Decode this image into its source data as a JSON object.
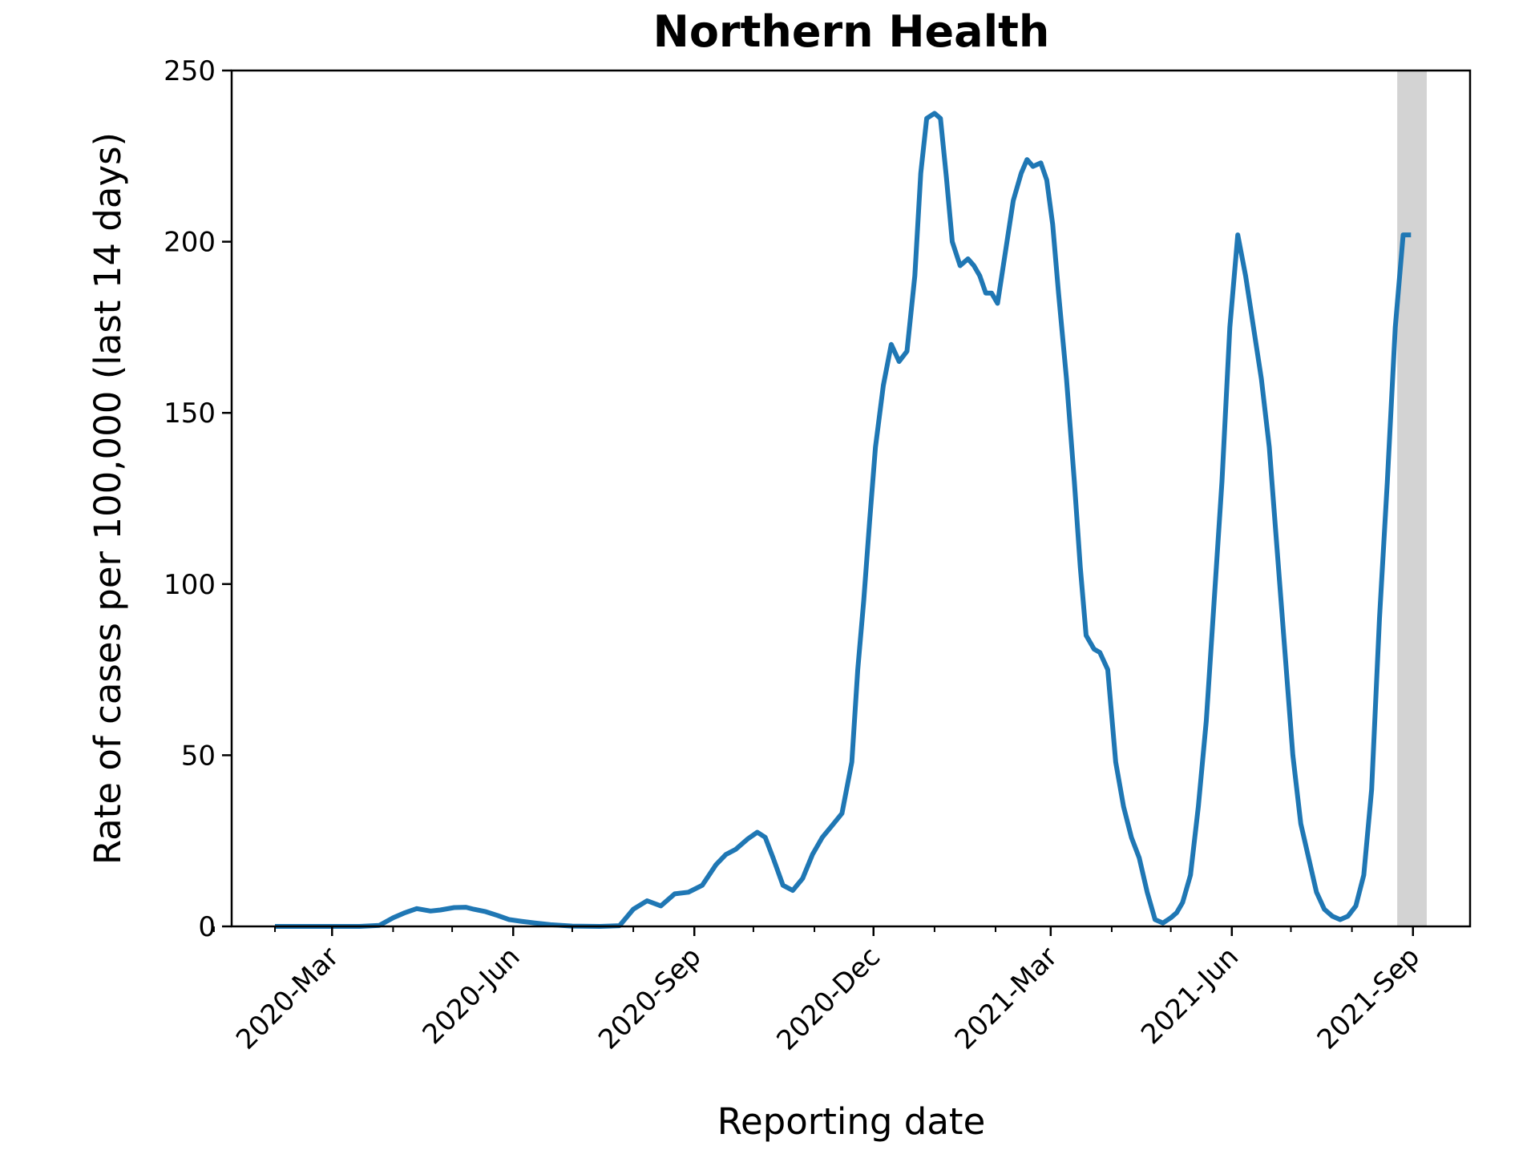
{
  "chart_data": {
    "type": "line",
    "title": "Northern Health",
    "xlabel": "Reporting date",
    "ylabel": "Rate of cases per 100,000 (last 14 days)",
    "ylim": [
      0,
      250
    ],
    "xlim": [
      "2020-01-10",
      "2021-09-30"
    ],
    "yticks": [
      0,
      50,
      100,
      150,
      200,
      250
    ],
    "yticklabels": [
      "0",
      "50",
      "100",
      "150",
      "200",
      "250"
    ],
    "xticks": [
      "2020-03-01",
      "2020-06-01",
      "2020-09-01",
      "2020-12-01",
      "2021-03-01",
      "2021-06-01",
      "2021-09-01"
    ],
    "xticklabels": [
      "2020-Mar",
      "2020-Jun",
      "2020-Sep",
      "2020-Dec",
      "2021-Mar",
      "2021-Jun",
      "2021-Sep"
    ],
    "minor_xticks": [
      "2020-01-01",
      "2020-02-01",
      "2020-04-01",
      "2020-05-01",
      "2020-07-01",
      "2020-08-01",
      "2020-10-01",
      "2020-11-01",
      "2021-01-01",
      "2021-02-01",
      "2021-04-01",
      "2021-05-01",
      "2021-07-01",
      "2021-08-01"
    ],
    "grid": false,
    "line_color": "#1f77b4",
    "shade_color": "#d3d3d3",
    "shaded_region": [
      "2021-08-24",
      "2021-09-08"
    ],
    "series": [
      {
        "x": [
          "2020-02-01",
          "2020-02-15",
          "2020-03-01",
          "2020-03-15",
          "2020-03-25",
          "2020-04-01",
          "2020-04-07",
          "2020-04-13",
          "2020-04-20",
          "2020-04-25",
          "2020-05-02",
          "2020-05-08",
          "2020-05-12",
          "2020-05-18",
          "2020-05-24",
          "2020-05-30",
          "2020-06-05",
          "2020-06-12",
          "2020-06-20",
          "2020-07-01",
          "2020-07-15",
          "2020-07-25",
          "2020-08-01",
          "2020-08-08",
          "2020-08-15",
          "2020-08-22",
          "2020-08-29",
          "2020-09-05",
          "2020-09-12",
          "2020-09-17",
          "2020-09-22",
          "2020-09-28",
          "2020-10-03",
          "2020-10-07",
          "2020-10-11",
          "2020-10-16",
          "2020-10-21",
          "2020-10-26",
          "2020-10-31",
          "2020-11-05",
          "2020-11-10",
          "2020-11-15",
          "2020-11-20",
          "2020-11-23",
          "2020-11-26",
          "2020-11-29",
          "2020-12-02",
          "2020-12-06",
          "2020-12-10",
          "2020-12-14",
          "2020-12-18",
          "2020-12-22",
          "2020-12-25",
          "2020-12-28",
          "2021-01-01",
          "2021-01-04",
          "2021-01-07",
          "2021-01-10",
          "2021-01-14",
          "2021-01-18",
          "2021-01-21",
          "2021-01-24",
          "2021-01-27",
          "2021-01-30",
          "2021-02-02",
          "2021-02-06",
          "2021-02-10",
          "2021-02-14",
          "2021-02-17",
          "2021-02-20",
          "2021-02-24",
          "2021-02-27",
          "2021-03-02",
          "2021-03-05",
          "2021-03-09",
          "2021-03-13",
          "2021-03-16",
          "2021-03-19",
          "2021-03-23",
          "2021-03-26",
          "2021-03-30",
          "2021-04-03",
          "2021-04-07",
          "2021-04-11",
          "2021-04-15",
          "2021-04-19",
          "2021-04-23",
          "2021-04-27",
          "2021-05-01",
          "2021-05-04",
          "2021-05-07",
          "2021-05-11",
          "2021-05-15",
          "2021-05-19",
          "2021-05-23",
          "2021-05-27",
          "2021-05-31",
          "2021-06-04",
          "2021-06-08",
          "2021-06-12",
          "2021-06-16",
          "2021-06-20",
          "2021-06-24",
          "2021-06-28",
          "2021-07-02",
          "2021-07-06",
          "2021-07-10",
          "2021-07-14",
          "2021-07-18",
          "2021-07-22",
          "2021-07-26",
          "2021-07-30",
          "2021-08-03",
          "2021-08-07",
          "2021-08-11",
          "2021-08-15",
          "2021-08-19",
          "2021-08-23",
          "2021-08-27",
          "2021-08-31"
        ],
        "y": [
          0,
          0,
          0,
          0,
          0.3,
          2.5,
          4,
          5.2,
          4.5,
          4.8,
          5.5,
          5.6,
          5,
          4.3,
          3.2,
          2,
          1.5,
          1,
          0.5,
          0.1,
          0,
          0.2,
          5,
          7.5,
          6,
          9.5,
          10,
          12,
          18,
          21,
          22.5,
          25.5,
          27.5,
          26,
          20,
          12,
          10.5,
          14,
          21,
          26,
          29.5,
          33,
          48,
          75,
          95,
          118,
          140,
          158,
          170,
          165,
          168,
          190,
          220,
          236,
          237.5,
          236,
          219,
          200,
          193,
          195,
          193,
          190,
          185,
          185,
          182,
          197,
          212,
          220,
          224,
          222,
          223,
          218,
          205,
          185,
          160,
          130,
          105,
          85,
          81,
          80,
          75,
          48,
          35,
          26,
          20,
          10,
          2,
          1,
          2.5,
          4,
          7,
          15,
          35,
          60,
          95,
          130,
          175,
          202,
          190,
          175,
          160,
          140,
          110,
          80,
          50,
          30,
          20,
          10,
          5,
          3,
          2,
          3,
          6,
          15,
          40,
          90,
          130,
          175,
          202,
          202
        ]
      }
    ]
  }
}
